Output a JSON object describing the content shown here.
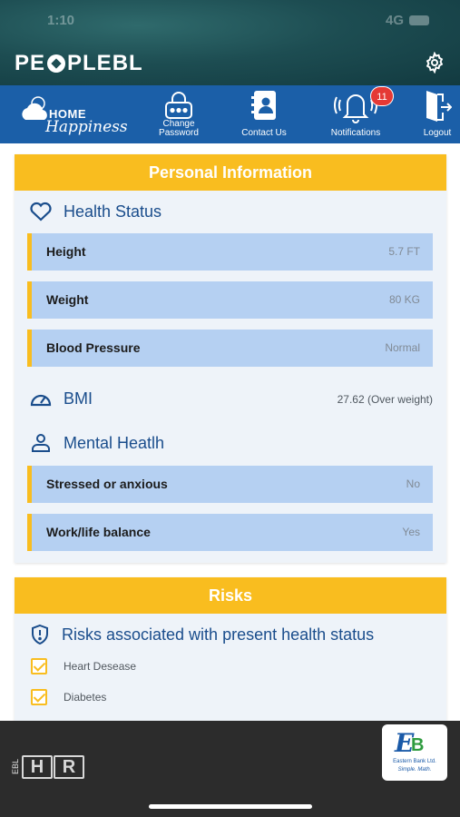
{
  "status_bar": {
    "time": "1:10",
    "network": "4G"
  },
  "app": {
    "brand_left": "PE",
    "brand_right": "PLEBL"
  },
  "nav": {
    "home_logo_line1": "HOME",
    "home_logo_line2": "Happiness",
    "items": [
      {
        "label_line1": "Change",
        "label_line2": "Password",
        "icon": "lock-icon"
      },
      {
        "label": "Contact Us",
        "icon": "contact-book-icon"
      },
      {
        "label": "Notifications",
        "icon": "bell-icon",
        "badge": "11"
      },
      {
        "label": "Logout",
        "icon": "logout-door-icon"
      }
    ]
  },
  "personal_info": {
    "title": "Personal Information",
    "health_status": {
      "heading": "Health Status",
      "rows": [
        {
          "label": "Height",
          "value": "5.7 FT"
        },
        {
          "label": "Weight",
          "value": "80 KG"
        },
        {
          "label": "Blood Pressure",
          "value": "Normal"
        }
      ]
    },
    "bmi": {
      "heading": "BMI",
      "value": "27.62 (Over weight)"
    },
    "mental_health": {
      "heading": "Mental Heatlh",
      "rows": [
        {
          "label": "Stressed or anxious",
          "value": "No"
        },
        {
          "label": "Work/life balance",
          "value": "Yes"
        }
      ]
    }
  },
  "risks": {
    "title": "Risks",
    "heading": "Risks associated with present health status",
    "items": [
      {
        "label": "Heart Desease",
        "checked": true
      },
      {
        "label": "Diabetes",
        "checked": true
      }
    ]
  },
  "footer": {
    "ebl_vertical": "EBL",
    "hr_letters": [
      "H",
      "R"
    ],
    "bank_mark": "EB",
    "bank_name": "Eastern Bank Ltd.",
    "bank_tagline": "Simple. Math."
  },
  "colors": {
    "accent": "#f9bd1f",
    "nav": "#1b5fa8",
    "row": "#b5d0f2",
    "heading": "#1a4d8c"
  }
}
